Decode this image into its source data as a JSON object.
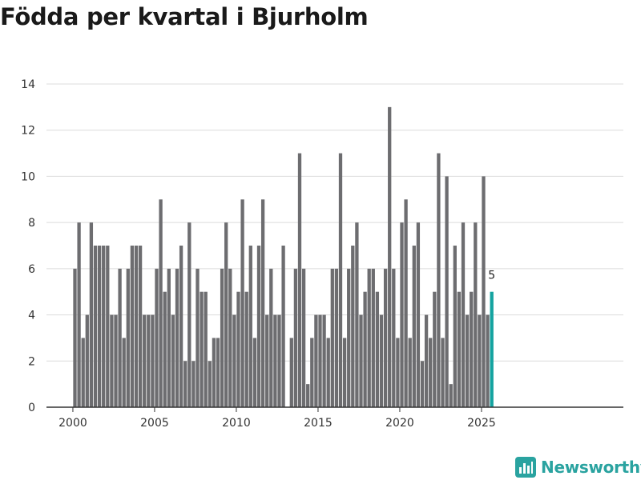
{
  "title": "Födda per kvartal i Bjurholm",
  "brand": {
    "name": "Newsworthy",
    "icon": "newsworthy-logo-icon"
  },
  "colors": {
    "bar": "#6d6d70",
    "highlight": "#14a3a0",
    "grid": "#dcdcdc",
    "axis": "#333333"
  },
  "chart_data": {
    "type": "bar",
    "title": "Födda per kvartal i Bjurholm",
    "xlabel": "",
    "ylabel": "",
    "ylim": [
      0,
      14
    ],
    "yticks": [
      0,
      2,
      4,
      6,
      8,
      10,
      12,
      14
    ],
    "xticks": [
      "2000",
      "2005",
      "2010",
      "2015",
      "2020",
      "2025"
    ],
    "grid": true,
    "categories": [
      "2000 Q1",
      "2000 Q2",
      "2000 Q3",
      "2000 Q4",
      "2001 Q1",
      "2001 Q2",
      "2001 Q3",
      "2001 Q4",
      "2002 Q1",
      "2002 Q2",
      "2002 Q3",
      "2002 Q4",
      "2003 Q1",
      "2003 Q2",
      "2003 Q3",
      "2003 Q4",
      "2004 Q1",
      "2004 Q2",
      "2004 Q3",
      "2004 Q4",
      "2005 Q1",
      "2005 Q2",
      "2005 Q3",
      "2005 Q4",
      "2006 Q1",
      "2006 Q2",
      "2006 Q3",
      "2006 Q4",
      "2007 Q1",
      "2007 Q2",
      "2007 Q3",
      "2007 Q4",
      "2008 Q1",
      "2008 Q2",
      "2008 Q3",
      "2008 Q4",
      "2009 Q1",
      "2009 Q2",
      "2009 Q3",
      "2009 Q4",
      "2010 Q1",
      "2010 Q2",
      "2010 Q3",
      "2010 Q4",
      "2011 Q1",
      "2011 Q2",
      "2011 Q3",
      "2011 Q4",
      "2012 Q1",
      "2012 Q2",
      "2012 Q3",
      "2012 Q4",
      "2013 Q1",
      "2013 Q2",
      "2013 Q3",
      "2013 Q4",
      "2014 Q1",
      "2014 Q2",
      "2014 Q3",
      "2014 Q4",
      "2015 Q1",
      "2015 Q2",
      "2015 Q3",
      "2015 Q4",
      "2016 Q1",
      "2016 Q2",
      "2016 Q3",
      "2016 Q4",
      "2017 Q1",
      "2017 Q2",
      "2017 Q3",
      "2017 Q4",
      "2018 Q1",
      "2018 Q2",
      "2018 Q3",
      "2018 Q4",
      "2019 Q1",
      "2019 Q2",
      "2019 Q3",
      "2019 Q4",
      "2020 Q1",
      "2020 Q2",
      "2020 Q3",
      "2020 Q4",
      "2021 Q1",
      "2021 Q2",
      "2021 Q3",
      "2021 Q4",
      "2022 Q1",
      "2022 Q2",
      "2022 Q3",
      "2022 Q4",
      "2023 Q1",
      "2023 Q2",
      "2023 Q3",
      "2023 Q4",
      "2024 Q1",
      "2024 Q2",
      "2024 Q3",
      "2024 Q4",
      "2025 Q1",
      "2025 Q2",
      "2025 Q3"
    ],
    "values": [
      6,
      8,
      3,
      4,
      8,
      7,
      7,
      7,
      7,
      4,
      4,
      6,
      3,
      6,
      7,
      7,
      7,
      4,
      4,
      4,
      6,
      9,
      5,
      6,
      4,
      6,
      7,
      2,
      8,
      2,
      6,
      5,
      5,
      2,
      3,
      3,
      6,
      8,
      6,
      4,
      5,
      9,
      5,
      7,
      3,
      7,
      9,
      4,
      6,
      4,
      4,
      7,
      0,
      3,
      6,
      11,
      6,
      1,
      3,
      4,
      4,
      4,
      3,
      6,
      6,
      11,
      3,
      6,
      7,
      8,
      4,
      5,
      6,
      6,
      5,
      4,
      6,
      13,
      6,
      3,
      8,
      9,
      3,
      7,
      8,
      2,
      4,
      3,
      5,
      11,
      3,
      10,
      1,
      7,
      5,
      8,
      4,
      5,
      8,
      4,
      10,
      4,
      5
    ],
    "highlight_last": true,
    "annotation": "5"
  }
}
